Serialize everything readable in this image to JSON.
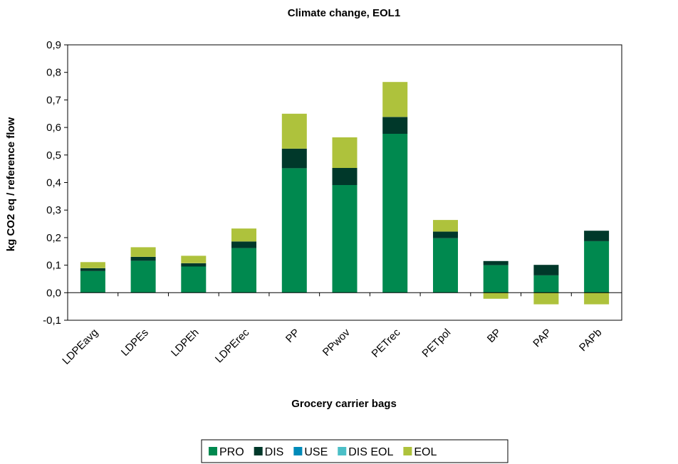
{
  "chart_data": {
    "type": "bar",
    "stacked": true,
    "title": "Climate change, EOL1",
    "xlabel": "Grocery carrier bags",
    "ylabel": "kg CO2 eq / reference flow",
    "ylim": [
      -0.1,
      0.9
    ],
    "yticks": [
      "-0,1",
      "0,0",
      "0,1",
      "0,2",
      "0,3",
      "0,4",
      "0,5",
      "0,6",
      "0,7",
      "0,8",
      "0,9"
    ],
    "grid": false,
    "legend_position": "bottom",
    "categories": [
      "LDPEavg",
      "LDPEs",
      "LDPEh",
      "LDPErec",
      "PP",
      "PPwov",
      "PETrec",
      "PETpol",
      "BP",
      "PAP",
      "PAPb"
    ],
    "series": [
      {
        "name": "PRO",
        "color": "#00894F",
        "values": [
          0.079,
          0.116,
          0.095,
          0.162,
          0.452,
          0.391,
          0.577,
          0.198,
          0.1,
          0.063,
          0.187
        ]
      },
      {
        "name": "DIS",
        "color": "#00382A",
        "values": [
          0.01,
          0.014,
          0.012,
          0.024,
          0.071,
          0.062,
          0.061,
          0.024,
          0.015,
          0.038,
          0.038
        ]
      },
      {
        "name": "USE",
        "color": "#008AB8",
        "values": [
          0,
          0,
          0,
          0,
          0,
          0,
          0,
          0,
          0,
          0,
          0
        ]
      },
      {
        "name": "DIS EOL",
        "color": "#4BBFC7",
        "values": [
          0,
          0,
          0,
          0,
          0,
          0,
          0,
          0,
          0,
          0,
          0
        ]
      },
      {
        "name": "EOL",
        "color": "#AEC23C",
        "values": [
          0.022,
          0.035,
          0.027,
          0.047,
          0.127,
          0.111,
          0.127,
          0.042,
          -0.022,
          -0.042,
          -0.042
        ]
      }
    ]
  }
}
